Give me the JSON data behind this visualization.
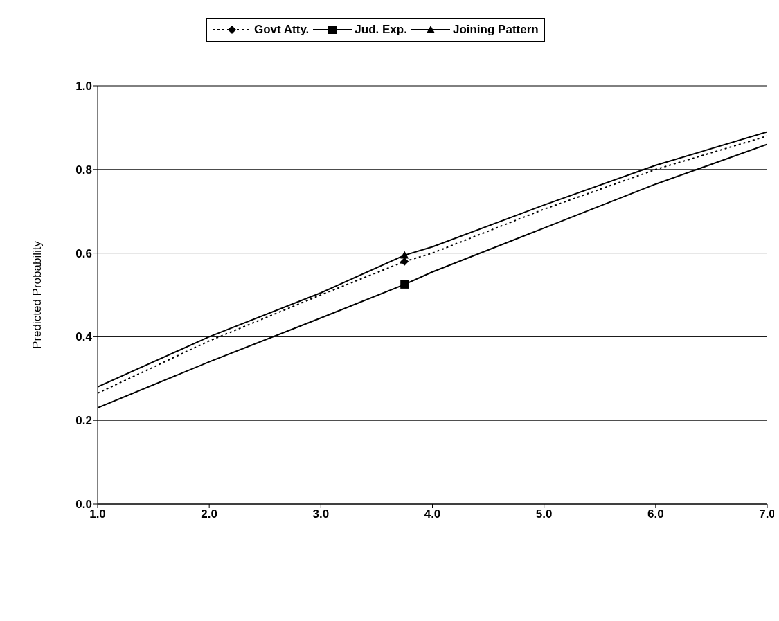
{
  "chart_data": {
    "type": "line",
    "ylabel": "Predicted Probability",
    "x": [
      1,
      2,
      3,
      3.75,
      4,
      5,
      6,
      7
    ],
    "series": [
      {
        "name": "Govt Atty.",
        "color": "#000000",
        "line_style": "dotted",
        "values": [
          0.265,
          0.39,
          0.5,
          0.58,
          0.6,
          0.705,
          0.8,
          0.88
        ]
      },
      {
        "name": "Jud. Exp.",
        "color": "#000000",
        "line_style": "solid",
        "values": [
          0.23,
          0.34,
          0.445,
          0.525,
          0.555,
          0.66,
          0.765,
          0.86
        ]
      },
      {
        "name": "Joining Pattern",
        "color": "#000000",
        "line_style": "solid",
        "values": [
          0.28,
          0.4,
          0.505,
          0.595,
          0.615,
          0.715,
          0.81,
          0.89
        ]
      },
      {
        "type": "scatter",
        "color": "#000000",
        "marker": "diamond",
        "values": [
          null,
          null,
          null,
          0.58,
          null,
          null,
          null,
          null
        ]
      },
      {
        "type": "scatter",
        "color": "#000000",
        "marker": "square",
        "values": [
          null,
          null,
          null,
          0.525,
          null,
          null,
          null,
          null
        ]
      },
      {
        "type": "scatter",
        "color": "#000000",
        "marker": "triangle",
        "values": [
          null,
          null,
          null,
          0.595,
          null,
          null,
          null,
          null
        ]
      }
    ],
    "xlim": [
      1,
      7
    ],
    "xticks": [
      {
        "value": 1,
        "label": "1.0"
      },
      {
        "value": 2,
        "label": "2.0"
      },
      {
        "value": 3,
        "label": "3.0"
      },
      {
        "value": 4,
        "label": "4.0"
      },
      {
        "value": 5,
        "label": "5.0"
      },
      {
        "value": 6,
        "label": "6.0"
      },
      {
        "value": 7,
        "label": "7.0"
      }
    ],
    "ylim": [
      0,
      1
    ],
    "yticks": [
      {
        "value": 0,
        "label": "0.0"
      },
      {
        "value": 0.2,
        "label": "0.2"
      },
      {
        "value": 0.4,
        "label": "0.4"
      },
      {
        "value": 0.6,
        "label": "0.6"
      },
      {
        "value": 0.8,
        "label": "0.8"
      },
      {
        "value": 1,
        "label": "1.0"
      }
    ],
    "grid": "y",
    "legend": "top"
  }
}
